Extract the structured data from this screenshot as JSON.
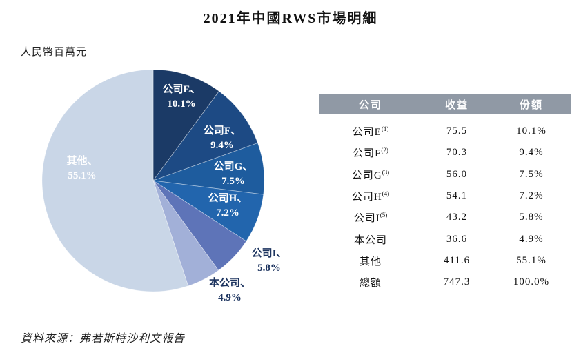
{
  "page": {
    "title": "2021年中國RWS市場明細",
    "unit_label": "人民幣百萬元",
    "source": "資料來源：弗若斯特沙利文報告"
  },
  "chart_data": {
    "type": "pie",
    "title": "2021年中國RWS市場明細",
    "unit": "人民幣百萬元",
    "start_angle": "12-oclock",
    "direction": "clockwise",
    "total_value": 747.3,
    "slices": [
      {
        "name": "公司E",
        "value": 75.5,
        "pct": 10.1,
        "label": "公司E、",
        "pct_label": "10.1%",
        "color": "#1b3a66",
        "label_pos": "inside"
      },
      {
        "name": "公司F",
        "value": 70.3,
        "pct": 9.4,
        "label": "公司F、",
        "pct_label": "9.4%",
        "color": "#1d4a84",
        "label_pos": "inside"
      },
      {
        "name": "公司G",
        "value": 56.0,
        "pct": 7.5,
        "label": "公司G、",
        "pct_label": "7.5%",
        "color": "#1e5c9e",
        "label_pos": "inside"
      },
      {
        "name": "公司H",
        "value": 54.1,
        "pct": 7.2,
        "label": "公司H、",
        "pct_label": "7.2%",
        "color": "#2265ad",
        "label_pos": "inside"
      },
      {
        "name": "公司I",
        "value": 43.2,
        "pct": 5.8,
        "label": "公司I、",
        "pct_label": "5.8%",
        "color": "#5e74b8",
        "label_pos": "outside"
      },
      {
        "name": "本公司",
        "value": 36.6,
        "pct": 4.9,
        "label": "本公司、",
        "pct_label": "4.9%",
        "color": "#a2b0d8",
        "label_pos": "outside"
      },
      {
        "name": "其他",
        "value": 411.6,
        "pct": 55.1,
        "label": "其他、",
        "pct_label": "55.1%",
        "color": "#c9d6e7",
        "label_pos": "inside"
      }
    ]
  },
  "table": {
    "header_bg": "#9099a5",
    "headers": [
      "公司",
      "收益",
      "份額"
    ],
    "rows": [
      {
        "company": "公司E",
        "sup": "(1)",
        "revenue": "75.5",
        "share": "10.1%"
      },
      {
        "company": "公司F",
        "sup": "(2)",
        "revenue": "70.3",
        "share": "9.4%"
      },
      {
        "company": "公司G",
        "sup": "(3)",
        "revenue": "56.0",
        "share": "7.5%"
      },
      {
        "company": "公司H",
        "sup": "(4)",
        "revenue": "54.1",
        "share": "7.2%"
      },
      {
        "company": "公司I",
        "sup": "(5)",
        "revenue": "43.2",
        "share": "5.8%"
      },
      {
        "company": "本公司",
        "sup": "",
        "revenue": "36.6",
        "share": "4.9%"
      },
      {
        "company": "其他",
        "sup": "",
        "revenue": "411.6",
        "share": "55.1%"
      },
      {
        "company": "總額",
        "sup": "",
        "revenue": "747.3",
        "share": "100.0%"
      }
    ]
  }
}
